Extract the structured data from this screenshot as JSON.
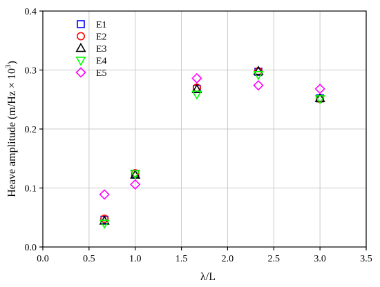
{
  "chart_data": {
    "type": "scatter",
    "title": "",
    "xlabel": "λ/L",
    "ylabel": "Heave amplitude (m/Hz × 10",
    "ylabel_sup": "3",
    "ylabel_close": ")",
    "xlim": [
      0.0,
      3.5
    ],
    "ylim": [
      0.0,
      0.4
    ],
    "xticks": [
      "0.0",
      "0.5",
      "1.0",
      "1.5",
      "2.0",
      "2.5",
      "3.0",
      "3.5"
    ],
    "yticks": [
      "0.0",
      "0.1",
      "0.2",
      "0.3",
      "0.4"
    ],
    "grid": true,
    "legend_position": "top-left",
    "series": [
      {
        "name": "E1",
        "marker": "square",
        "color": "#0000ff",
        "label_color": "#000000",
        "x": [
          0.667,
          1.0,
          1.667,
          2.333,
          3.0
        ],
        "y": [
          0.046,
          0.124,
          0.268,
          0.297,
          0.252
        ]
      },
      {
        "name": "E2",
        "marker": "circle",
        "color": "#ff0000",
        "label_color": "#000000",
        "x": [
          0.667,
          1.0,
          1.667,
          2.333,
          3.0
        ],
        "y": [
          0.048,
          0.125,
          0.27,
          0.298,
          0.251
        ]
      },
      {
        "name": "E3",
        "marker": "triangle-up",
        "color": "#000000",
        "label_color": "#ff0000",
        "x": [
          0.667,
          1.0,
          1.667,
          2.333,
          3.0
        ],
        "y": [
          0.044,
          0.122,
          0.267,
          0.298,
          0.252
        ]
      },
      {
        "name": "E4",
        "marker": "triangle-down",
        "color": "#00ff00",
        "label_color": "#000000",
        "x": [
          0.667,
          1.0,
          1.667,
          2.333,
          3.0
        ],
        "y": [
          0.04,
          0.124,
          0.259,
          0.292,
          0.251
        ]
      },
      {
        "name": "E5",
        "marker": "diamond",
        "color": "#ff00ff",
        "label_color": "#000000",
        "x": [
          0.667,
          1.0,
          1.667,
          2.333,
          3.0
        ],
        "y": [
          0.089,
          0.106,
          0.286,
          0.274,
          0.268
        ]
      }
    ]
  }
}
